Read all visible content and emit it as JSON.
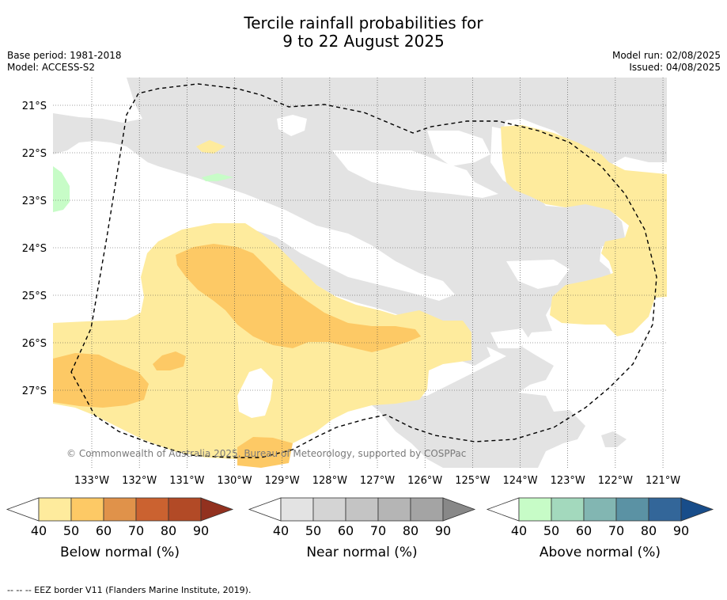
{
  "title_line1": "Tercile rainfall probabilities for",
  "title_line2": "9 to 22 August 2025",
  "meta_left": {
    "base_period": "Base period: 1981-2018",
    "model": "Model: ACCESS-S2"
  },
  "meta_right": {
    "model_run": "Model run: 02/08/2025",
    "issued": "Issued: 04/08/2025"
  },
  "map": {
    "lat_labels": [
      "21°S",
      "22°S",
      "23°S",
      "24°S",
      "25°S",
      "26°S",
      "27°S"
    ],
    "lon_labels": [
      "133°W",
      "132°W",
      "131°W",
      "130°W",
      "129°W",
      "128°W",
      "127°W",
      "126°W",
      "125°W",
      "124°W",
      "123°W",
      "122°W",
      "121°W"
    ],
    "copyright": "© Commonwealth of Australia 2025, Bureau of Meteorology, supported by COSPPac",
    "colors": {
      "near_normal_land": "#e3e3e3",
      "below_40_50": "#feeb9d",
      "below_50_60": "#fdc965",
      "above_40_50": "#c7fcc7",
      "eez_border": "#000000"
    }
  },
  "colorbars": [
    {
      "label": "Below normal (%)",
      "ticks": [
        "40",
        "50",
        "60",
        "70",
        "80",
        "90"
      ],
      "colors": [
        "#feeb9d",
        "#fdc965",
        "#e0924a",
        "#cb6230",
        "#b24a26",
        "#92311f"
      ]
    },
    {
      "label": "Near normal (%)",
      "ticks": [
        "40",
        "50",
        "60",
        "70",
        "80",
        "90"
      ],
      "colors": [
        "#e3e3e3",
        "#d4d4d4",
        "#c4c4c4",
        "#b5b5b5",
        "#a4a4a4",
        "#888888"
      ]
    },
    {
      "label": "Above normal (%)",
      "ticks": [
        "40",
        "50",
        "60",
        "70",
        "80",
        "90"
      ],
      "colors": [
        "#c7fcc7",
        "#a3d9bd",
        "#82b6b2",
        "#5b92a4",
        "#336699",
        "#184d8a"
      ]
    }
  ],
  "footer": "--  --  -- EEZ border V11 (Flanders Marine Institute, 2019)."
}
